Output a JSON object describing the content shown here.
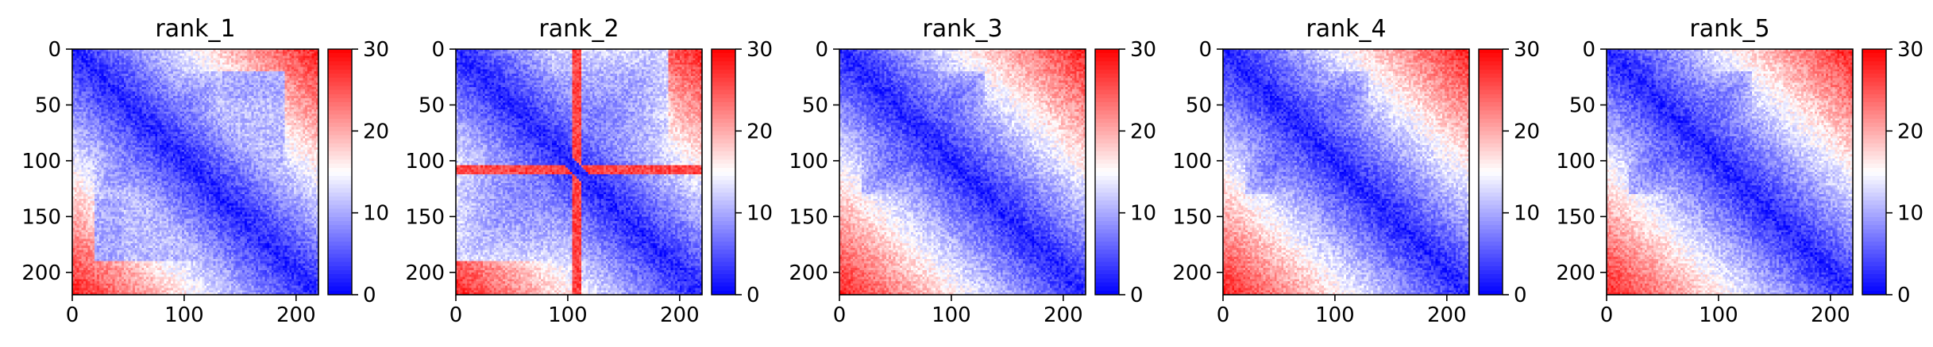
{
  "chart_data": [
    {
      "type": "heatmap",
      "title": "rank_1",
      "xticks": [
        "0",
        "100",
        "200"
      ],
      "yticks": [
        "0",
        "50",
        "100",
        "150",
        "200"
      ],
      "xlim": [
        0,
        220
      ],
      "ylim": [
        220,
        0
      ],
      "colorbar": {
        "min": 0,
        "max": 30,
        "ticks": [
          "0",
          "10",
          "20",
          "30"
        ]
      },
      "blocks": [
        {
          "range": [
            20,
            135
          ],
          "value": 6
        },
        {
          "range": [
            135,
            180
          ],
          "value": 12
        },
        {
          "range": [
            160,
            180
          ],
          "value": 9
        },
        {
          "range": [
            180,
            220
          ],
          "value": 14
        },
        {
          "range": [
            200,
            220
          ],
          "value": 8
        }
      ],
      "offblocks": [
        {
          "rows": [
            20,
            135
          ],
          "cols": [
            135,
            190
          ],
          "value": 11
        },
        {
          "rows": [
            135,
            190
          ],
          "cols": [
            20,
            45
          ],
          "value": 10
        }
      ]
    },
    {
      "type": "heatmap",
      "title": "rank_2",
      "xticks": [
        "0",
        "100",
        "200"
      ],
      "yticks": [
        "0",
        "50",
        "100",
        "150",
        "200"
      ],
      "xlim": [
        0,
        220
      ],
      "ylim": [
        220,
        0
      ],
      "colorbar": {
        "min": 0,
        "max": 30,
        "ticks": [
          "0",
          "10",
          "20",
          "30"
        ]
      },
      "blocks": [
        {
          "range": [
            0,
            190
          ],
          "value": 7
        },
        {
          "range": [
            180,
            220
          ],
          "value": 14
        },
        {
          "range": [
            200,
            220
          ],
          "value": 8
        }
      ],
      "offblocks": [],
      "stripes": [
        {
          "at": 108,
          "width": 5,
          "value": 26
        }
      ]
    },
    {
      "type": "heatmap",
      "title": "rank_3",
      "xticks": [
        "0",
        "100",
        "200"
      ],
      "yticks": [
        "0",
        "50",
        "100",
        "150",
        "200"
      ],
      "xlim": [
        0,
        220
      ],
      "ylim": [
        220,
        0
      ],
      "colorbar": {
        "min": 0,
        "max": 30,
        "ticks": [
          "0",
          "10",
          "20",
          "30"
        ]
      },
      "blocks": [
        {
          "range": [
            20,
            130
          ],
          "value": 5
        },
        {
          "range": [
            128,
            165
          ],
          "value": 12
        },
        {
          "range": [
            150,
            178
          ],
          "value": 9
        },
        {
          "range": [
            170,
            205
          ],
          "value": 11
        },
        {
          "range": [
            195,
            220
          ],
          "value": 7
        }
      ],
      "offblocks": []
    },
    {
      "type": "heatmap",
      "title": "rank_4",
      "xticks": [
        "0",
        "100",
        "200"
      ],
      "yticks": [
        "0",
        "50",
        "100",
        "150",
        "200"
      ],
      "xlim": [
        0,
        220
      ],
      "ylim": [
        220,
        0
      ],
      "colorbar": {
        "min": 0,
        "max": 30,
        "ticks": [
          "0",
          "10",
          "20",
          "30"
        ]
      },
      "blocks": [
        {
          "range": [
            20,
            130
          ],
          "value": 5
        },
        {
          "range": [
            125,
            160
          ],
          "value": 12
        },
        {
          "range": [
            150,
            175
          ],
          "value": 10
        },
        {
          "range": [
            165,
            200
          ],
          "value": 12
        },
        {
          "range": [
            195,
            220
          ],
          "value": 7
        }
      ],
      "offblocks": []
    },
    {
      "type": "heatmap",
      "title": "rank_5",
      "xticks": [
        "0",
        "100",
        "200"
      ],
      "yticks": [
        "0",
        "50",
        "100",
        "150",
        "200"
      ],
      "xlim": [
        0,
        220
      ],
      "ylim": [
        220,
        0
      ],
      "colorbar": {
        "min": 0,
        "max": 30,
        "ticks": [
          "0",
          "10",
          "20",
          "30"
        ]
      },
      "blocks": [
        {
          "range": [
            20,
            130
          ],
          "value": 5
        },
        {
          "range": [
            125,
            160
          ],
          "value": 12
        },
        {
          "range": [
            150,
            175
          ],
          "value": 10
        },
        {
          "range": [
            165,
            200
          ],
          "value": 12
        },
        {
          "range": [
            195,
            220
          ],
          "value": 7
        }
      ],
      "offblocks": []
    }
  ],
  "colors": {
    "low": "#0000ff",
    "mid": "#ffffff",
    "high": "#ff0000",
    "text": "#000000"
  }
}
